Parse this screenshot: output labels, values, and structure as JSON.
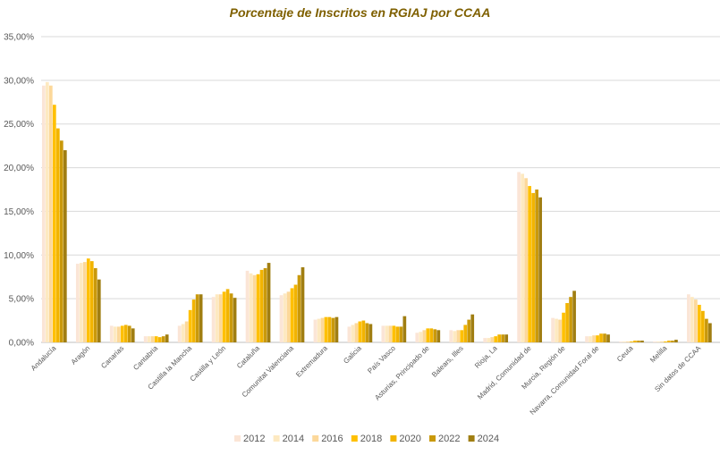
{
  "chart_data": {
    "type": "bar",
    "title": "Porcentaje de Inscritos en RGIAJ por CCAA",
    "xlabel": "",
    "ylabel": "",
    "ylim": [
      0,
      35
    ],
    "ytick_values": [
      0,
      5,
      10,
      15,
      20,
      25,
      30,
      35
    ],
    "ytick_labels": [
      "0,00%",
      "5,00%",
      "10,00%",
      "15,00%",
      "20,00%",
      "25,00%",
      "30,00%",
      "35,00%"
    ],
    "grid": true,
    "legend_position": "bottom",
    "categories": [
      "Andalucía",
      "Aragón",
      "Canarias",
      "Cantabria",
      "Castilla la Mancha",
      "Castilla y León",
      "Cataluña",
      "Comunitat Valenciana",
      "Extremadura",
      "Galicia",
      "País Vasco",
      "Asturias, Principado de",
      "Balears, Illes",
      "Rioja, La",
      "Madrid, Comunidad de",
      "Murcia, Región de",
      "Navarra, Comunidad Foral de",
      "Ceuta",
      "Melilla",
      "Sin datos de CCAA"
    ],
    "series": [
      {
        "name": "2012",
        "color": "#fbe5d6",
        "values": [
          29.4,
          9.0,
          1.9,
          0.7,
          1.9,
          5.2,
          8.2,
          5.4,
          2.6,
          1.8,
          1.9,
          1.1,
          1.4,
          0.5,
          19.5,
          2.8,
          0.7,
          0.1,
          0.1,
          5.5
        ]
      },
      {
        "name": "2014",
        "color": "#fde9c1",
        "values": [
          29.8,
          9.1,
          1.8,
          0.7,
          2.1,
          5.5,
          7.9,
          5.6,
          2.7,
          2.0,
          1.9,
          1.2,
          1.3,
          0.5,
          19.3,
          2.7,
          0.7,
          0.1,
          0.1,
          5.2
        ]
      },
      {
        "name": "2016",
        "color": "#fcd89a",
        "values": [
          29.4,
          9.2,
          1.8,
          0.7,
          2.4,
          5.5,
          7.7,
          5.8,
          2.8,
          2.2,
          1.9,
          1.4,
          1.4,
          0.6,
          18.8,
          2.6,
          0.8,
          0.1,
          0.1,
          4.9
        ]
      },
      {
        "name": "2018",
        "color": "#ffc000",
        "values": [
          27.2,
          9.6,
          1.9,
          0.7,
          3.7,
          5.8,
          7.8,
          6.2,
          2.9,
          2.4,
          1.9,
          1.6,
          1.4,
          0.7,
          17.9,
          3.4,
          0.8,
          0.1,
          0.1,
          4.3
        ]
      },
      {
        "name": "2020",
        "color": "#f2b400",
        "values": [
          24.5,
          9.3,
          2.0,
          0.6,
          4.9,
          6.1,
          8.3,
          6.6,
          2.9,
          2.5,
          1.8,
          1.6,
          2.0,
          0.9,
          17.1,
          4.5,
          1.0,
          0.2,
          0.2,
          3.6
        ]
      },
      {
        "name": "2022",
        "color": "#c9990b",
        "values": [
          23.1,
          8.5,
          1.9,
          0.7,
          5.5,
          5.6,
          8.5,
          7.7,
          2.8,
          2.2,
          1.8,
          1.5,
          2.6,
          0.9,
          17.5,
          5.2,
          1.0,
          0.2,
          0.2,
          2.7
        ]
      },
      {
        "name": "2024",
        "color": "#a07e12",
        "values": [
          22.0,
          7.2,
          1.6,
          0.9,
          5.5,
          5.1,
          9.1,
          8.6,
          2.9,
          2.1,
          3.0,
          1.4,
          3.2,
          0.9,
          16.6,
          5.9,
          0.9,
          0.2,
          0.3,
          2.2
        ]
      }
    ]
  }
}
